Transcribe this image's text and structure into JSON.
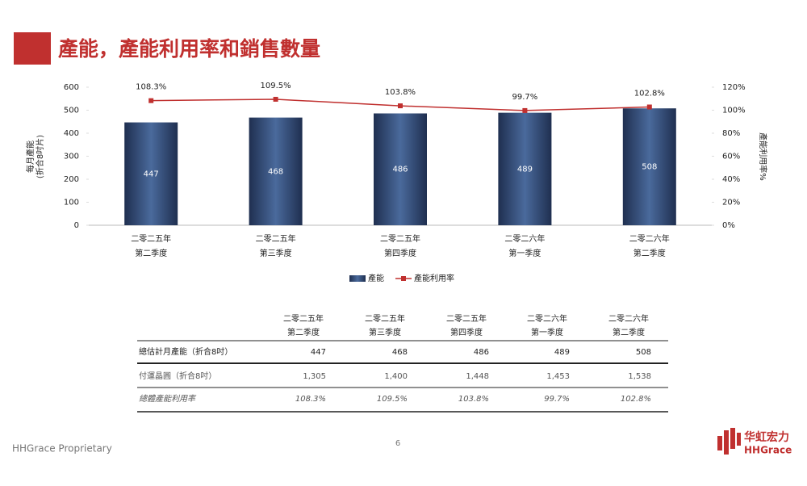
{
  "header": {
    "title": "產能，產能利用率和銷售數量"
  },
  "chart_data": {
    "type": "bar",
    "categories": [
      [
        "二零二五年",
        "第二季度"
      ],
      [
        "二零二五年",
        "第三季度"
      ],
      [
        "二零二五年",
        "第四季度"
      ],
      [
        "二零二六年",
        "第一季度"
      ],
      [
        "二零二六年",
        "第二季度"
      ]
    ],
    "series": [
      {
        "name": "產能",
        "type": "bar",
        "color": "#4a6a9c",
        "values": [
          447,
          468,
          486,
          489,
          508
        ]
      },
      {
        "name": "產能利用率",
        "type": "line",
        "axis": "y2",
        "color": "#c0302f",
        "values": [
          108.3,
          109.5,
          103.8,
          99.7,
          102.8
        ],
        "value_labels": [
          "108.3%",
          "109.5%",
          "103.8%",
          "99.7%",
          "102.8%"
        ]
      }
    ],
    "ylabel": [
      "每月產能",
      "(折合8吋片)"
    ],
    "y2label": "產能利用率%",
    "ylim": [
      0,
      600
    ],
    "yticks": [
      0,
      100,
      200,
      300,
      400,
      500,
      600
    ],
    "y2lim": [
      0,
      120
    ],
    "y2ticks": [
      {
        "value": 0,
        "label": "0%"
      },
      {
        "value": 20,
        "label": "20%"
      },
      {
        "value": 40,
        "label": "40%"
      },
      {
        "value": 60,
        "label": "60%"
      },
      {
        "value": 80,
        "label": "80%"
      },
      {
        "value": 100,
        "label": "100%"
      },
      {
        "value": 120,
        "label": "120%"
      }
    ],
    "legend": "bottom"
  },
  "table": {
    "columns": [
      [
        "二零二五年",
        "第二季度"
      ],
      [
        "二零二五年",
        "第三季度"
      ],
      [
        "二零二五年",
        "第四季度"
      ],
      [
        "二零二六年",
        "第一季度"
      ],
      [
        "二零二六年",
        "第二季度"
      ]
    ],
    "rows": [
      {
        "label": "總估計月產能（折合8吋）",
        "cells": [
          "447",
          "468",
          "486",
          "489",
          "508"
        ]
      },
      {
        "label": "付運晶圓（折合8吋）",
        "cells": [
          "1,305",
          "1,400",
          "1,448",
          "1,453",
          "1,538"
        ]
      },
      {
        "label": "總體產能利用率",
        "cells": [
          "108.3%",
          "109.5%",
          "103.8%",
          "99.7%",
          "102.8%"
        ]
      }
    ]
  },
  "footer": {
    "note": "HHGrace Proprietary",
    "page": "6",
    "logo_cn": "华虹宏力",
    "logo_en": "HHGrace"
  }
}
